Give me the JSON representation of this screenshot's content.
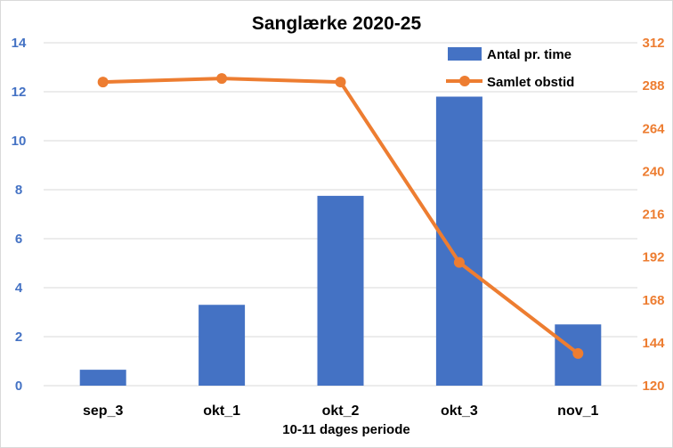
{
  "chart_data": {
    "type": "bar",
    "title": "Sanglærke 2020-25",
    "xlabel": "10-11 dages periode",
    "ylabel": "",
    "categories": [
      "sep_3",
      "okt_1",
      "okt_2",
      "okt_3",
      "nov_1"
    ],
    "series": [
      {
        "name": "Antal pr. time",
        "type": "bar",
        "axis": "left",
        "color": "#4472c4",
        "values": [
          0.65,
          3.3,
          7.75,
          11.8,
          2.5
        ]
      },
      {
        "name": "Samlet obstid",
        "type": "line",
        "axis": "right",
        "color": "#ed7d31",
        "values": [
          290,
          292,
          290,
          189,
          138
        ]
      }
    ],
    "ylim": [
      0,
      14
    ],
    "yticks": [
      "0",
      "2",
      "4",
      "6",
      "8",
      "10",
      "12",
      "14"
    ],
    "y2lim": [
      120,
      312
    ],
    "y2ticks": [
      "120",
      "144",
      "168",
      "192",
      "216",
      "240",
      "264",
      "288",
      "312"
    ],
    "grid": true,
    "legend_position": "top-right"
  }
}
